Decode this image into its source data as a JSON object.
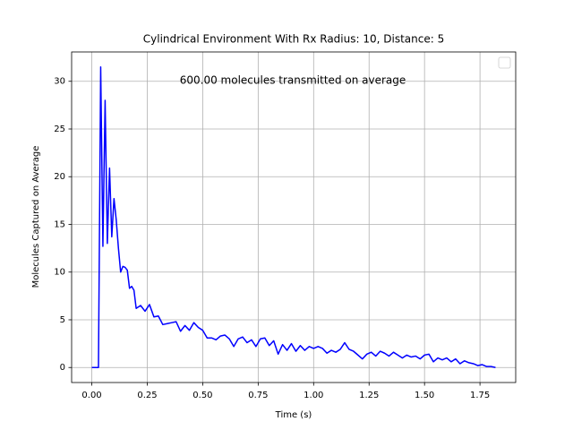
{
  "chart_data": {
    "type": "line",
    "title": "Cylindrical Environment With Rx Radius: 10, Distance: 5",
    "annotation": "600.00 molecules transmitted on average",
    "annotation_color": "#ff0000",
    "xlabel": "Time (s)",
    "ylabel": "Molecules Captured on Average",
    "color": "#0000ff",
    "grid": true,
    "legend": "upper right",
    "xlim": [
      -0.091,
      1.911
    ],
    "ylim": [
      -1.575,
      33.075
    ],
    "xticks": [
      {
        "value": 0,
        "label": "0.00"
      },
      {
        "value": 0.25,
        "label": "0.25"
      },
      {
        "value": 0.5,
        "label": "0.50"
      },
      {
        "value": 0.75,
        "label": "0.75"
      },
      {
        "value": 1,
        "label": "1.00"
      },
      {
        "value": 1.25,
        "label": "1.25"
      },
      {
        "value": 1.5,
        "label": "1.50"
      },
      {
        "value": 1.75,
        "label": "1.75"
      }
    ],
    "yticks": [
      0,
      5,
      10,
      15,
      20,
      25,
      30
    ],
    "x": [
      0,
      0.01,
      0.02,
      0.03,
      0.04,
      0.05,
      0.06,
      0.07,
      0.08,
      0.09,
      0.1,
      0.11,
      0.12,
      0.13,
      0.14,
      0.15,
      0.16,
      0.17,
      0.18,
      0.19,
      0.2,
      0.22,
      0.24,
      0.26,
      0.28,
      0.3,
      0.32,
      0.34,
      0.36,
      0.38,
      0.4,
      0.42,
      0.44,
      0.46,
      0.48,
      0.5,
      0.52,
      0.54,
      0.56,
      0.58,
      0.6,
      0.62,
      0.64,
      0.66,
      0.68,
      0.7,
      0.72,
      0.74,
      0.76,
      0.78,
      0.8,
      0.82,
      0.84,
      0.86,
      0.88,
      0.9,
      0.92,
      0.94,
      0.96,
      0.98,
      1.0,
      1.02,
      1.04,
      1.06,
      1.08,
      1.1,
      1.12,
      1.14,
      1.16,
      1.18,
      1.2,
      1.22,
      1.24,
      1.26,
      1.28,
      1.3,
      1.32,
      1.34,
      1.36,
      1.38,
      1.4,
      1.42,
      1.44,
      1.46,
      1.48,
      1.5,
      1.52,
      1.54,
      1.56,
      1.58,
      1.6,
      1.62,
      1.64,
      1.66,
      1.68,
      1.7,
      1.72,
      1.74,
      1.76,
      1.78,
      1.8,
      1.82
    ],
    "values": [
      0,
      0,
      0,
      0,
      31.5,
      12.7,
      28,
      13,
      20.9,
      13.7,
      17.7,
      15.5,
      12.5,
      10,
      10.6,
      10.5,
      10.2,
      8.3,
      8.5,
      8.1,
      6.2,
      6.5,
      5.9,
      6.6,
      5.3,
      5.4,
      4.5,
      4.6,
      4.7,
      4.8,
      3.8,
      4.4,
      3.9,
      4.7,
      4.2,
      3.9,
      3.1,
      3.1,
      2.9,
      3.3,
      3.4,
      3.0,
      2.2,
      3.0,
      3.2,
      2.6,
      2.9,
      2.2,
      3.0,
      3.1,
      2.3,
      2.8,
      1.4,
      2.4,
      1.8,
      2.5,
      1.7,
      2.3,
      1.8,
      2.2,
      2.0,
      2.2,
      2.0,
      1.5,
      1.8,
      1.6,
      1.9,
      2.6,
      1.9,
      1.7,
      1.3,
      0.9,
      1.4,
      1.6,
      1.2,
      1.7,
      1.5,
      1.2,
      1.6,
      1.3,
      1.0,
      1.3,
      1.1,
      1.2,
      0.9,
      1.3,
      1.4,
      0.6,
      1.0,
      0.8,
      1.0,
      0.6,
      0.9,
      0.4,
      0.7,
      0.5,
      0.4,
      0.2,
      0.3,
      0.1,
      0.1,
      0.0
    ]
  }
}
